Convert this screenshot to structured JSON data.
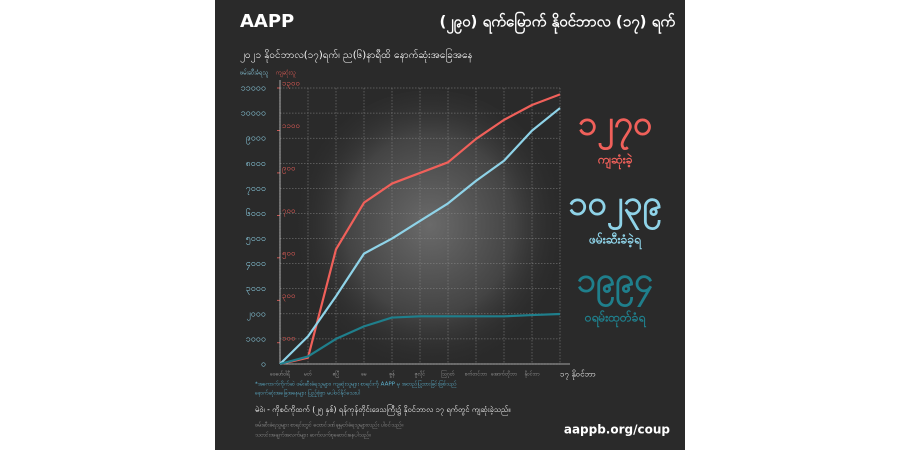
{
  "chart_data": {
    "type": "line",
    "brand": "AAPP",
    "title": "(၂၉၀) ရက်မြောက် နိုဝင်ဘာလ (၁၇) ရက်",
    "subtitle": "၂၀၂၁ နိုဝင်ဘာလ(၁၇)ရက်၊ ည(၆)နာရီထိ နောက်ဆုံးအခြေအနေ",
    "ylabel": "ဖမ်းဆီးခံရသူ",
    "y2label": "ကျဆုံးသူ",
    "categories": [
      "ဖေဖော်ဝါရီ",
      "မတ်",
      "ဧပြီ",
      "မေ",
      "ဇွန်",
      "ဇူလိုင်",
      "ဩဂုတ်",
      "စက်တင်ဘာ",
      "အောက်တိုဘာ",
      "နိုဝင်ဘာ",
      "၁၇ နိုဝင်ဘာ"
    ],
    "series": [
      {
        "name": "ကျဆုံးခဲ့",
        "total_label": "၁၂၇၀",
        "color": "#f0605a",
        "axis": "y2",
        "values": [
          0,
          30,
          540,
          760,
          850,
          900,
          950,
          1060,
          1150,
          1220,
          1270
        ]
      },
      {
        "name": "ဖမ်းဆီးခံခဲ့ရ",
        "total_label": "၁၀၂၃၉",
        "color": "#8fd3e8",
        "values": [
          0,
          1100,
          2700,
          4400,
          5000,
          5700,
          6400,
          7300,
          8100,
          9300,
          10200
        ]
      },
      {
        "name": "ဝရမ်းထုတ်ခံရ",
        "total_label": "၁၉၉၄",
        "color": "#1f7f8c",
        "values": [
          0,
          300,
          1000,
          1500,
          1850,
          1900,
          1900,
          1900,
          1900,
          1950,
          1994
        ]
      }
    ],
    "ylim": [
      0,
      11000
    ],
    "yticks": [
      {
        "value": 0,
        "label": "၀"
      },
      {
        "value": 1000,
        "label": "၁၀၀၀"
      },
      {
        "value": 2000,
        "label": "၂၀၀၀"
      },
      {
        "value": 3000,
        "label": "၃၀၀၀"
      },
      {
        "value": 4000,
        "label": "၄၀၀၀"
      },
      {
        "value": 5000,
        "label": "၅၀၀၀"
      },
      {
        "value": 6000,
        "label": "၆၀၀၀"
      },
      {
        "value": 7000,
        "label": "၇၀၀၀"
      },
      {
        "value": 8000,
        "label": "၈၀၀၀"
      },
      {
        "value": 9000,
        "label": "၉၀၀၀"
      },
      {
        "value": 10000,
        "label": "၁၀၀၀၀"
      },
      {
        "value": 11000,
        "label": "၁၁၀၀၀"
      }
    ],
    "y2lim": [
      0,
      1300
    ],
    "y2ticks": [
      {
        "value": 100,
        "label": "၁၀၀"
      },
      {
        "value": 300,
        "label": "၃၀၀"
      },
      {
        "value": 500,
        "label": "၅၀၀"
      },
      {
        "value": 700,
        "label": "၇၀၀"
      },
      {
        "value": 900,
        "label": "၉၀၀"
      },
      {
        "value": 1100,
        "label": "၁၁၀၀"
      },
      {
        "value": 1300,
        "label": "၁၃၀၀"
      }
    ],
    "grid": true,
    "background": "#2a2a2a",
    "notes": [
      "*အကောက်ကိုက်ဆဲ ဖမ်းဆီးခံရသူများ၊ ကျဆုံးသူများ စာရင်းကို AAPP မှ အတည်ပြုထားခြင်းဖြစ်သည်",
      "နောက်ဆုံးအခြေအနေများ ပြည့်စုံစွာ မပါဝင်နိုင်သေးပါ"
    ],
    "caption": "မဲဝဲ၊ - ကိုစင်ကိုထက် (၂၅ နှစ်) ရန်ကုန်တိုင်းဒေသကြီး၌ နိုဝင်ဘာလ ၁၇ ရက်တွင် ကျဆုံးခဲ့သည်။",
    "footnotes": [
      "ဖမ်းဆီးခံရသူများ စာရင်းတွင် ထောင်ဒဏ်ချမှတ်ခံရသူများလည်း ပါဝင်သည်။",
      "သတင်းအချက်အလက်များ ဆက်လက်စုဆောင်းနေပါသည်။"
    ],
    "url": "aappb.org/coup"
  }
}
